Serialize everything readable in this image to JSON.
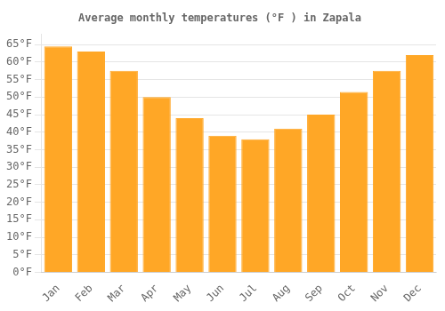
{
  "chart_data": {
    "type": "bar",
    "title": "Average monthly temperatures (°F ) in Zapala",
    "categories": [
      "Jan",
      "Feb",
      "Mar",
      "Apr",
      "May",
      "Jun",
      "Jul",
      "Aug",
      "Sep",
      "Oct",
      "Nov",
      "Dec"
    ],
    "values": [
      64.5,
      63,
      57.5,
      50,
      44,
      39,
      38,
      41,
      45,
      51.5,
      57.5,
      62
    ],
    "color": "#FFA726",
    "ylim": [
      0,
      68
    ],
    "yticks": [
      {
        "value": 0,
        "label": "0°F"
      },
      {
        "value": 5,
        "label": "5°F"
      },
      {
        "value": 10,
        "label": "10°F"
      },
      {
        "value": 15,
        "label": "15°F"
      },
      {
        "value": 20,
        "label": "20°F"
      },
      {
        "value": 25,
        "label": "25°F"
      },
      {
        "value": 30,
        "label": "30°F"
      },
      {
        "value": 35,
        "label": "35°F"
      },
      {
        "value": 40,
        "label": "40°F"
      },
      {
        "value": 45,
        "label": "45°F"
      },
      {
        "value": 50,
        "label": "50°F"
      },
      {
        "value": 55,
        "label": "55°F"
      },
      {
        "value": 60,
        "label": "60°F"
      },
      {
        "value": 65,
        "label": "65°F"
      }
    ],
    "grid": true
  }
}
